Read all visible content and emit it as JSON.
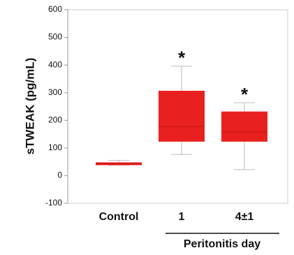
{
  "chart_data": {
    "type": "box",
    "y_label": "sTWEAK (pg/mL)",
    "x_group_label": "Peritonitis day",
    "categories": [
      "Control",
      "1",
      "4±1"
    ],
    "boxes": [
      {
        "whislo": 38,
        "q1": 38,
        "med": 43,
        "q3": 48,
        "whishi": 55
      },
      {
        "whislo": 77,
        "q1": 123,
        "med": 178,
        "q3": 307,
        "whishi": 396
      },
      {
        "whislo": 22,
        "q1": 123,
        "med": 158,
        "q3": 232,
        "whishi": 264
      }
    ],
    "significance": [
      null,
      "*",
      "*"
    ],
    "color": "#e8201f",
    "ylim": [
      -100,
      600
    ],
    "yticks": [
      -100,
      0,
      100,
      200,
      300,
      400,
      500,
      600
    ]
  }
}
